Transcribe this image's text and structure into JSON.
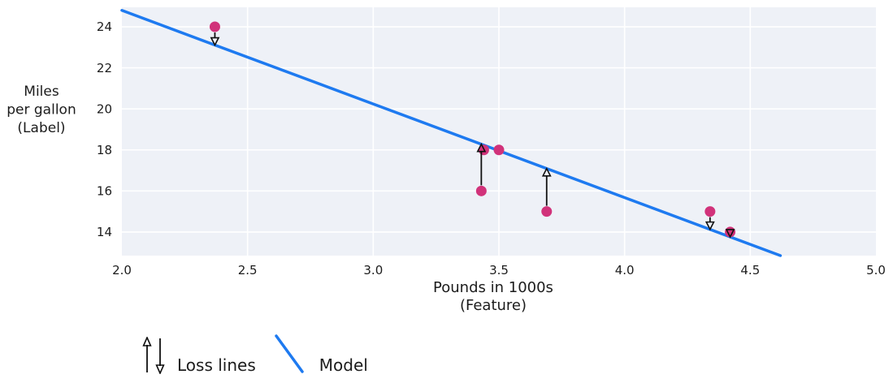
{
  "colors": {
    "point": "#d1327a",
    "model_line": "#1e7af0",
    "loss_arrow": "#111111",
    "plot_bg": "#eef1f7",
    "grid": "#ffffff",
    "text": "#1c1c1c"
  },
  "chart_data": {
    "type": "scatter",
    "title": "",
    "xlabel_lines": [
      "Pounds in 1000s",
      "(Feature)"
    ],
    "ylabel_lines": [
      "Miles",
      "per gallon",
      "(Label)"
    ],
    "xlim": [
      2.0,
      5.0
    ],
    "ylim": [
      12.85,
      24.95
    ],
    "grid": true,
    "xticks": {
      "values": [
        2.0,
        2.5,
        3.0,
        3.5,
        4.0,
        4.5,
        5.0
      ],
      "labels": [
        "2.0",
        "2.5",
        "3.0",
        "3.5",
        "4.0",
        "4.5",
        "5.0"
      ]
    },
    "yticks": {
      "values": [
        14,
        16,
        18,
        20,
        22,
        24
      ],
      "labels": [
        "14",
        "16",
        "18",
        "20",
        "22",
        "24"
      ]
    },
    "points": [
      {
        "x": 2.37,
        "y": 24
      },
      {
        "x": 3.44,
        "y": 18
      },
      {
        "x": 3.5,
        "y": 18
      },
      {
        "x": 3.43,
        "y": 16
      },
      {
        "x": 3.69,
        "y": 15
      },
      {
        "x": 4.34,
        "y": 15
      },
      {
        "x": 4.42,
        "y": 14
      }
    ],
    "model_line": {
      "label": "Model",
      "slope": -4.56,
      "intercept": 33.9,
      "x_start": 2.0,
      "y_start": 24.8,
      "x_end": 4.62,
      "y_end": 12.85
    },
    "loss_lines": {
      "label": "Loss lines",
      "items": [
        {
          "x": 2.37,
          "from": 24,
          "to": 23.11,
          "direction": "down"
        },
        {
          "x": 3.43,
          "from": 16,
          "to": 18.28,
          "direction": "up"
        },
        {
          "x": 3.69,
          "from": 15,
          "to": 17.09,
          "direction": "up"
        },
        {
          "x": 4.34,
          "from": 15,
          "to": 14.13,
          "direction": "down"
        },
        {
          "x": 4.42,
          "from": 14,
          "to": 13.76,
          "direction": "down"
        }
      ]
    },
    "legend": [
      {
        "symbol": "arrows",
        "label": "Loss lines"
      },
      {
        "symbol": "line",
        "label": "Model"
      }
    ]
  }
}
